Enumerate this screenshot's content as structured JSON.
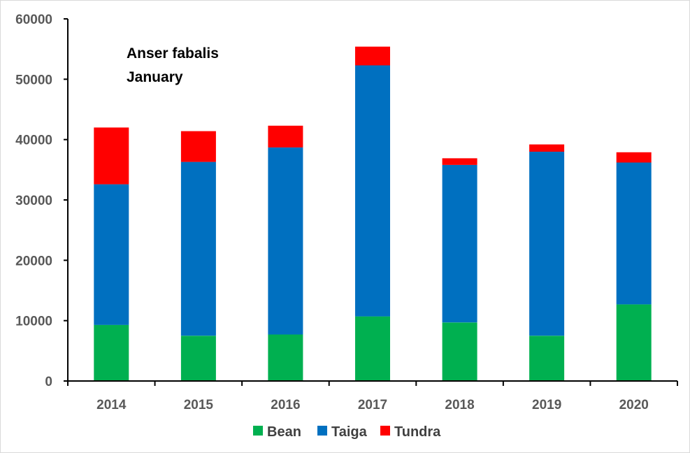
{
  "chart_data": {
    "type": "bar",
    "stacked": true,
    "title_lines": [
      "Anser fabalis",
      "January"
    ],
    "xlabel": "",
    "ylabel": "",
    "categories": [
      "2014",
      "2015",
      "2016",
      "2017",
      "2018",
      "2019",
      "2020"
    ],
    "ylim": [
      0,
      60000
    ],
    "yticks": [
      0,
      10000,
      20000,
      30000,
      40000,
      50000,
      60000
    ],
    "grid": false,
    "legend_position": "bottom",
    "series": [
      {
        "name": "Bean",
        "color": "#00b050",
        "values": [
          9300,
          7500,
          7700,
          10700,
          9700,
          7500,
          12700
        ]
      },
      {
        "name": "Taiga",
        "color": "#0070c0",
        "values": [
          23300,
          28800,
          31000,
          41600,
          26100,
          30500,
          23500
        ]
      },
      {
        "name": "Tundra",
        "color": "#ff0000",
        "values": [
          9400,
          5100,
          3600,
          3100,
          1100,
          1200,
          1700
        ]
      }
    ]
  }
}
